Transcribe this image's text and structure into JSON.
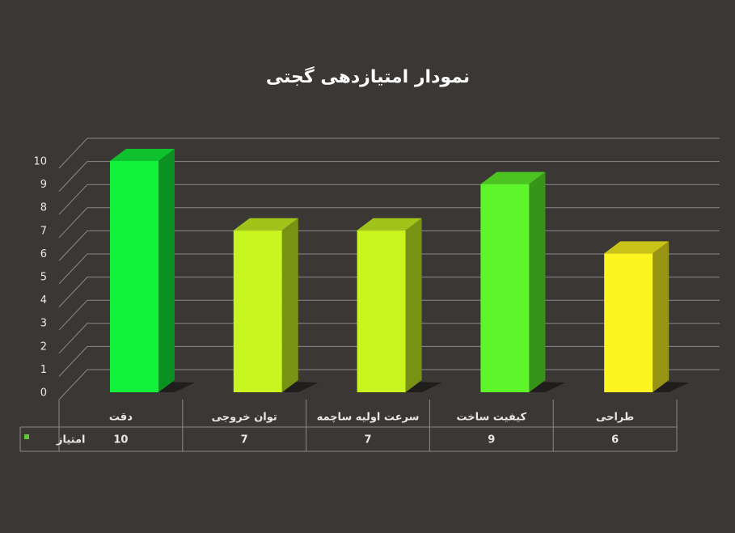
{
  "chart_data": {
    "type": "bar3d",
    "title": "نمودار امتیازدهی گجتی",
    "categories": [
      "دقت",
      "توان خروجی",
      "سرعت اولیه ساچمه",
      "کیفیت ساخت",
      "طراحی"
    ],
    "series": [
      {
        "name": "امتیاز",
        "color": "#5ec83a",
        "values": [
          10,
          7,
          7,
          9,
          6
        ],
        "colors": [
          "#13f23a",
          "#c8f520",
          "#c8f520",
          "#5ef52a",
          "#fdf520"
        ]
      }
    ],
    "ylim": [
      0,
      10
    ],
    "yticks": [
      0,
      1,
      2,
      3,
      4,
      5,
      6,
      7,
      8,
      9,
      10
    ],
    "grid": true,
    "data_table": true
  }
}
